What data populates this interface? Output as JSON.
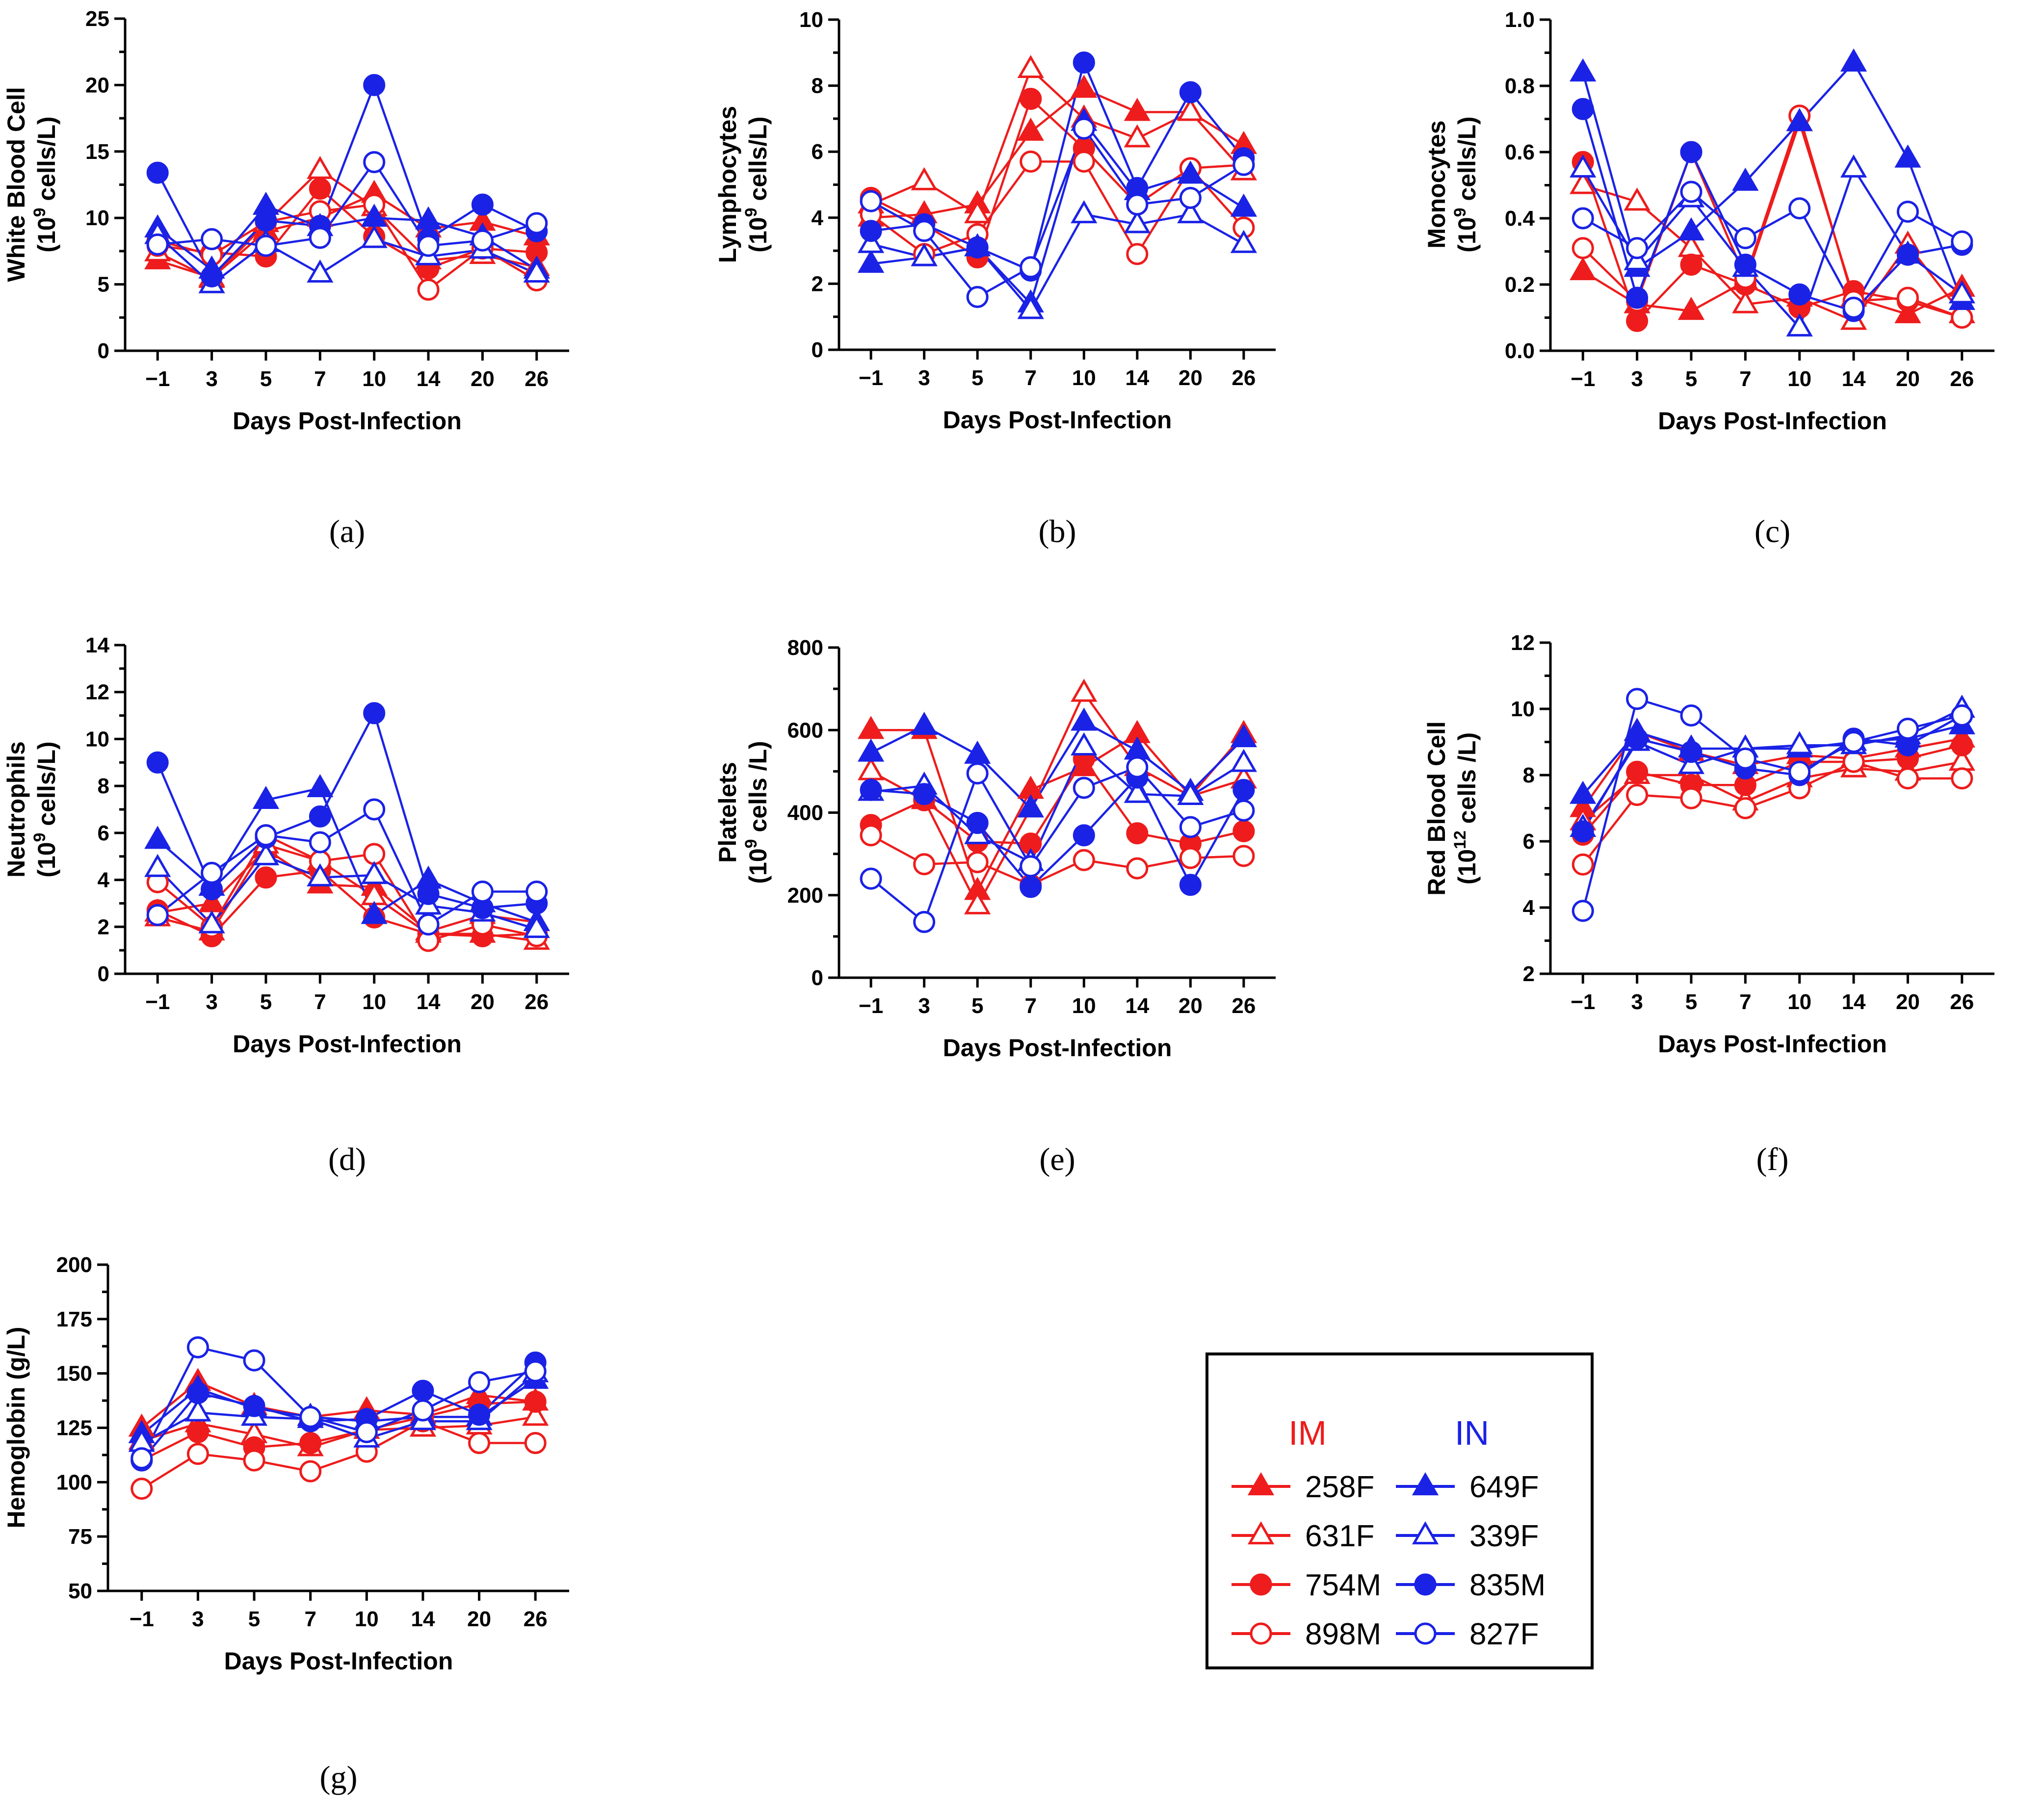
{
  "colors": {
    "IM": "#ee1c1c",
    "IN": "#1a22e6"
  },
  "legend": {
    "groups": [
      {
        "name": "IM",
        "color": "#ee1c1c",
        "entries": [
          "258F",
          "631F",
          "754M",
          "898M"
        ]
      },
      {
        "name": "IN",
        "color": "#1a22e6",
        "entries": [
          "649F",
          "339F",
          "835M",
          "827F"
        ]
      }
    ],
    "markers": {
      "258F": "filled-triangle",
      "631F": "open-triangle",
      "754M": "filled-circle",
      "898M": "open-circle",
      "649F": "filled-triangle",
      "339F": "open-triangle",
      "835M": "filled-circle",
      "827F": "open-circle"
    }
  },
  "chart_data": [
    {
      "id": "a",
      "type": "line",
      "panel_label": "(a)",
      "xlabel": "Days Post-Infection",
      "ylabel_line1": "White Blood Cell",
      "ylabel_unit": "(10^9 cells/L)",
      "ylim": [
        0,
        25
      ],
      "yticks": [
        0,
        5,
        10,
        15,
        20,
        25
      ],
      "categories": [
        "−1",
        "3",
        "5",
        "7",
        "10",
        "14",
        "20",
        "26"
      ],
      "series": [
        {
          "name": "258F",
          "group": "IM",
          "values": [
            6.8,
            5.5,
            9.0,
            10.0,
            11.8,
            9.2,
            9.7,
            8.6
          ]
        },
        {
          "name": "631F",
          "group": "IM",
          "values": [
            7.4,
            5.4,
            9.6,
            13.6,
            10.8,
            6.8,
            7.2,
            6.3
          ]
        },
        {
          "name": "754M",
          "group": "IM",
          "values": [
            7.9,
            7.4,
            7.1,
            12.2,
            8.6,
            6.2,
            7.7,
            7.4
          ]
        },
        {
          "name": "898M",
          "group": "IM",
          "values": [
            8.3,
            7.2,
            9.7,
            10.5,
            11.0,
            4.6,
            7.7,
            5.3
          ]
        },
        {
          "name": "649F",
          "group": "IN",
          "values": [
            9.2,
            6.1,
            10.9,
            9.3,
            10.0,
            9.8,
            8.6,
            6.1
          ]
        },
        {
          "name": "339F",
          "group": "IN",
          "values": [
            8.7,
            5.0,
            8.1,
            5.8,
            8.4,
            7.1,
            7.6,
            5.8
          ]
        },
        {
          "name": "835M",
          "group": "IN",
          "values": [
            13.4,
            5.6,
            9.8,
            9.4,
            20.0,
            8.4,
            11.0,
            9.0
          ]
        },
        {
          "name": "827F",
          "group": "IN",
          "values": [
            8.0,
            8.4,
            7.9,
            8.5,
            14.2,
            7.9,
            8.3,
            9.6
          ]
        }
      ]
    },
    {
      "id": "b",
      "type": "line",
      "panel_label": "(b)",
      "xlabel": "Days Post-Infection",
      "ylabel_line1": "Lymphocytes",
      "ylabel_unit": "(10^9 cells/L)",
      "ylim": [
        0,
        10
      ],
      "yticks": [
        0,
        2,
        4,
        6,
        8,
        10
      ],
      "categories": [
        "−1",
        "3",
        "5",
        "7",
        "10",
        "14",
        "20",
        "26"
      ],
      "series": [
        {
          "name": "258F",
          "group": "IM",
          "values": [
            4.0,
            4.1,
            4.4,
            6.6,
            7.9,
            7.2,
            7.2,
            6.2
          ]
        },
        {
          "name": "631F",
          "group": "IM",
          "values": [
            4.4,
            5.1,
            4.1,
            8.5,
            7.0,
            6.4,
            7.2,
            5.4
          ]
        },
        {
          "name": "754M",
          "group": "IM",
          "values": [
            4.6,
            3.8,
            2.8,
            7.6,
            6.1,
            4.4,
            5.5,
            5.6
          ]
        },
        {
          "name": "898M",
          "group": "IM",
          "values": [
            4.1,
            2.9,
            3.5,
            5.7,
            5.7,
            2.9,
            5.5,
            3.7
          ]
        },
        {
          "name": "649F",
          "group": "IN",
          "values": [
            2.6,
            2.8,
            3.1,
            1.4,
            6.9,
            4.8,
            5.3,
            4.3
          ]
        },
        {
          "name": "339F",
          "group": "IN",
          "values": [
            3.2,
            2.8,
            3.1,
            1.2,
            4.1,
            3.8,
            4.1,
            3.2
          ]
        },
        {
          "name": "835M",
          "group": "IN",
          "values": [
            3.6,
            3.8,
            3.1,
            2.4,
            8.7,
            4.9,
            7.8,
            5.8
          ]
        },
        {
          "name": "827F",
          "group": "IN",
          "values": [
            4.5,
            3.6,
            1.6,
            2.5,
            6.7,
            4.4,
            4.6,
            5.6
          ]
        }
      ]
    },
    {
      "id": "c",
      "type": "line",
      "panel_label": "(c)",
      "xlabel": "Days Post-Infection",
      "ylabel_line1": "Monocytes",
      "ylabel_unit": "(10^9 cells/L)",
      "ylim": [
        0,
        1.0
      ],
      "yticks": [
        0.0,
        0.2,
        0.4,
        0.6,
        0.8,
        1.0
      ],
      "ytick_labels": [
        "0.0",
        "0.2",
        "0.4",
        "0.6",
        "0.8",
        "1.0"
      ],
      "categories": [
        "−1",
        "3",
        "5",
        "7",
        "10",
        "14",
        "20",
        "26"
      ],
      "series": [
        {
          "name": "258F",
          "group": "IM",
          "values": [
            0.24,
            0.14,
            0.12,
            0.21,
            0.69,
            0.16,
            0.11,
            0.19
          ]
        },
        {
          "name": "631F",
          "group": "IM",
          "values": [
            0.5,
            0.45,
            0.31,
            0.14,
            0.16,
            0.09,
            0.32,
            0.11
          ]
        },
        {
          "name": "754M",
          "group": "IM",
          "values": [
            0.57,
            0.09,
            0.26,
            0.2,
            0.13,
            0.18,
            0.15,
            0.1
          ]
        },
        {
          "name": "898M",
          "group": "IM",
          "values": [
            0.31,
            0.15,
            0.6,
            0.22,
            0.71,
            0.15,
            0.16,
            0.1
          ]
        },
        {
          "name": "649F",
          "group": "IN",
          "values": [
            0.84,
            0.25,
            0.36,
            0.51,
            0.69,
            0.87,
            0.58,
            0.15
          ]
        },
        {
          "name": "339F",
          "group": "IN",
          "values": [
            0.55,
            0.27,
            0.46,
            0.25,
            0.07,
            0.55,
            0.29,
            0.17
          ]
        },
        {
          "name": "835M",
          "group": "IN",
          "values": [
            0.73,
            0.16,
            0.6,
            0.26,
            0.17,
            0.12,
            0.29,
            0.32
          ]
        },
        {
          "name": "827F",
          "group": "IN",
          "values": [
            0.4,
            0.31,
            0.48,
            0.34,
            0.43,
            0.13,
            0.42,
            0.33
          ]
        }
      ]
    },
    {
      "id": "d",
      "type": "line",
      "panel_label": "(d)",
      "xlabel": "Days Post-Infection",
      "ylabel_line1": "Neutrophils",
      "ylabel_unit": "(10^9 cells/L)",
      "ylim": [
        0,
        14
      ],
      "yticks": [
        0,
        2,
        4,
        6,
        8,
        10,
        12,
        14
      ],
      "categories": [
        "−1",
        "3",
        "5",
        "7",
        "10",
        "14",
        "20",
        "26"
      ],
      "series": [
        {
          "name": "258F",
          "group": "IM",
          "values": [
            2.6,
            3.0,
            5.3,
            3.8,
            3.7,
            1.8,
            2.5,
            2.2
          ]
        },
        {
          "name": "631F",
          "group": "IM",
          "values": [
            2.4,
            1.8,
            5.5,
            4.8,
            3.3,
            1.7,
            1.7,
            1.4
          ]
        },
        {
          "name": "754M",
          "group": "IM",
          "values": [
            2.7,
            1.6,
            4.1,
            4.4,
            2.4,
            1.7,
            1.6,
            1.7
          ]
        },
        {
          "name": "898M",
          "group": "IM",
          "values": [
            3.9,
            2.0,
            5.9,
            4.8,
            5.1,
            1.4,
            2.1,
            1.6
          ]
        },
        {
          "name": "649F",
          "group": "IN",
          "values": [
            5.7,
            3.7,
            7.4,
            7.9,
            2.5,
            4.0,
            3.0,
            2.2
          ]
        },
        {
          "name": "339F",
          "group": "IN",
          "values": [
            4.5,
            2.1,
            5.0,
            4.1,
            4.2,
            2.9,
            2.6,
            1.9
          ]
        },
        {
          "name": "835M",
          "group": "IN",
          "values": [
            9.0,
            3.6,
            5.8,
            6.7,
            11.1,
            3.4,
            2.8,
            3.0
          ]
        },
        {
          "name": "827F",
          "group": "IN",
          "values": [
            2.5,
            4.3,
            5.9,
            5.6,
            7.0,
            2.1,
            3.5,
            3.5
          ]
        }
      ]
    },
    {
      "id": "e",
      "type": "line",
      "panel_label": "(e)",
      "xlabel": "Days Post-Infection",
      "ylabel_line1": "Platelets",
      "ylabel_unit": "(10^9 cells /L)",
      "ylim": [
        0,
        800
      ],
      "yticks": [
        0,
        200,
        400,
        600,
        800
      ],
      "categories": [
        "−1",
        "3",
        "5",
        "7",
        "10",
        "14",
        "20",
        "26"
      ],
      "series": [
        {
          "name": "258F",
          "group": "IM",
          "values": [
            600,
            600,
            210,
            455,
            510,
            590,
            440,
            590
          ]
        },
        {
          "name": "631F",
          "group": "IM",
          "values": [
            500,
            430,
            175,
            410,
            690,
            510,
            440,
            480
          ]
        },
        {
          "name": "754M",
          "group": "IM",
          "values": [
            370,
            430,
            330,
            325,
            530,
            350,
            325,
            355
          ]
        },
        {
          "name": "898M",
          "group": "IM",
          "values": [
            345,
            275,
            280,
            225,
            285,
            265,
            290,
            295
          ]
        },
        {
          "name": "649F",
          "group": "IN",
          "values": [
            545,
            610,
            540,
            410,
            620,
            550,
            450,
            580
          ]
        },
        {
          "name": "339F",
          "group": "IN",
          "values": [
            450,
            465,
            345,
            280,
            560,
            445,
            440,
            520
          ]
        },
        {
          "name": "835M",
          "group": "IN",
          "values": [
            455,
            445,
            375,
            220,
            345,
            485,
            225,
            455
          ]
        },
        {
          "name": "827F",
          "group": "IN",
          "values": [
            240,
            135,
            495,
            270,
            460,
            510,
            365,
            405
          ]
        }
      ]
    },
    {
      "id": "f",
      "type": "line",
      "panel_label": "(f)",
      "xlabel": "Days Post-Infection",
      "ylabel_line1": "Red Blood Cell",
      "ylabel_unit": "(10^12 cells /L)",
      "ylim": [
        2,
        12
      ],
      "yticks": [
        2,
        4,
        6,
        8,
        10,
        12
      ],
      "categories": [
        "−1",
        "3",
        "5",
        "7",
        "10",
        "14",
        "20",
        "26"
      ],
      "series": [
        {
          "name": "258F",
          "group": "IM",
          "values": [
            7.0,
            9.3,
            8.7,
            8.3,
            8.6,
            8.5,
            8.8,
            9.1
          ]
        },
        {
          "name": "631F",
          "group": "IM",
          "values": [
            6.6,
            8.0,
            8.0,
            7.2,
            7.9,
            8.2,
            8.1,
            8.4
          ]
        },
        {
          "name": "754M",
          "group": "IM",
          "values": [
            6.2,
            8.1,
            7.7,
            7.7,
            8.4,
            8.4,
            8.5,
            8.9
          ]
        },
        {
          "name": "898M",
          "group": "IM",
          "values": [
            5.3,
            7.4,
            7.3,
            7.0,
            7.6,
            8.4,
            7.9,
            7.9
          ]
        },
        {
          "name": "649F",
          "group": "IN",
          "values": [
            7.4,
            9.3,
            8.8,
            8.8,
            8.8,
            9.0,
            9.1,
            9.5
          ]
        },
        {
          "name": "339F",
          "group": "IN",
          "values": [
            6.4,
            9.0,
            8.3,
            8.8,
            8.9,
            8.9,
            9.2,
            10.0
          ]
        },
        {
          "name": "835M",
          "group": "IN",
          "values": [
            6.3,
            9.1,
            8.7,
            8.2,
            8.0,
            9.1,
            8.9,
            9.8
          ]
        },
        {
          "name": "827F",
          "group": "IN",
          "values": [
            3.9,
            10.3,
            9.8,
            8.5,
            8.1,
            9.0,
            9.4,
            9.8
          ]
        }
      ]
    },
    {
      "id": "g",
      "type": "line",
      "panel_label": "(g)",
      "xlabel": "Days Post-Infection",
      "ylabel_line1": "Hemoglobin (g/L)",
      "ylabel_unit": "",
      "ylim": [
        50,
        200
      ],
      "yticks": [
        50,
        75,
        100,
        125,
        150,
        175,
        200
      ],
      "categories": [
        "−1",
        "3",
        "5",
        "7",
        "10",
        "14",
        "20",
        "26"
      ],
      "series": [
        {
          "name": "258F",
          "group": "IM",
          "values": [
            125,
            146,
            135,
            130,
            133,
            131,
            140,
            137
          ]
        },
        {
          "name": "631F",
          "group": "IM",
          "values": [
            119,
            127,
            122,
            116,
            124,
            125,
            126,
            130
          ]
        },
        {
          "name": "754M",
          "group": "IM",
          "values": [
            110,
            123,
            116,
            118,
            124,
            130,
            136,
            137
          ]
        },
        {
          "name": "898M",
          "group": "IM",
          "values": [
            97,
            113,
            110,
            105,
            114,
            128,
            118,
            118
          ]
        },
        {
          "name": "649F",
          "group": "IN",
          "values": [
            122,
            143,
            134,
            130,
            128,
            130,
            130,
            147
          ]
        },
        {
          "name": "339F",
          "group": "IN",
          "values": [
            118,
            132,
            130,
            129,
            120,
            128,
            128,
            150
          ]
        },
        {
          "name": "835M",
          "group": "IN",
          "values": [
            110,
            141,
            135,
            128,
            129,
            142,
            131,
            155
          ]
        },
        {
          "name": "827F",
          "group": "IN",
          "values": [
            111,
            162,
            156,
            130,
            123,
            133,
            146,
            151
          ]
        }
      ]
    }
  ]
}
